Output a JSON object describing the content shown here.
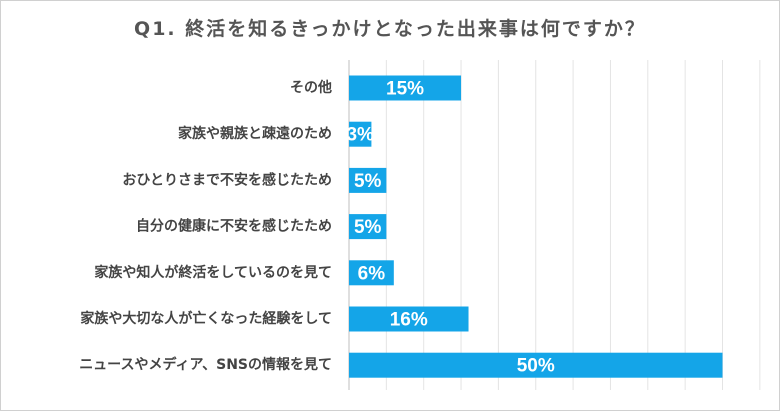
{
  "chart_data": {
    "type": "bar",
    "orientation": "horizontal",
    "title": "Q1. 終活を知るきっかけとなった出来事は何ですか？",
    "categories": [
      "その他",
      "家族や親族と疎遠のため",
      "おひとりさまで不安を感じたため",
      "自分の健康に不安を感じたため",
      "家族や知人が終活をしているのを見て",
      "家族や大切な人が亡くなった経験をして",
      "ニュースやメディア、SNSの情報を見て"
    ],
    "values": [
      15,
      3,
      5,
      5,
      6,
      16,
      50
    ],
    "value_labels": [
      "15%",
      "3%",
      "5%",
      "5%",
      "6%",
      "16%",
      "50%"
    ],
    "unit": "%",
    "xlim": [
      0,
      55
    ],
    "grid": "vertical",
    "bar_color": "#14a5e8",
    "label_color": "#ffffff"
  }
}
